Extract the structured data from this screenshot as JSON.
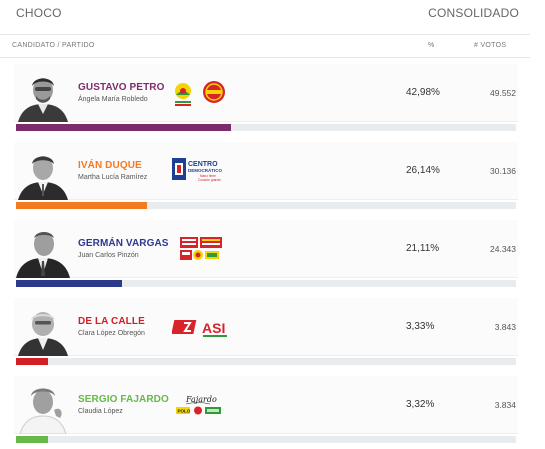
{
  "header": {
    "region": "CHOCO",
    "status": "CONSOLIDADO"
  },
  "columns": {
    "candidate": "CANDIDATO / PARTIDO",
    "percent": "%",
    "votes": "# VOTOS"
  },
  "candidates": [
    {
      "name": "GUSTAVO PETRO",
      "vice": "Ángela María Robledo",
      "percent": "42,98%",
      "votes": "49.552",
      "share": 0.4298,
      "color": "#7b2d6b",
      "logos": [
        "colombia-humana-logo",
        "mais-logo"
      ]
    },
    {
      "name": "IVÁN DUQUE",
      "vice": "Martha Lucía Ramírez",
      "percent": "26,14%",
      "votes": "30.136",
      "share": 0.2614,
      "color": "#f47a20",
      "logos": [
        "centro-democratico-logo"
      ],
      "logo_text": [
        "CENTRO",
        "DEMOCRÁTICO",
        "Mano firme",
        "Corazón grande"
      ]
    },
    {
      "name": "GERMÁN VARGAS",
      "vice": "Juan Carlos Pinzón",
      "percent": "21,11%",
      "votes": "24.343",
      "share": 0.2111,
      "color": "#2d3a8c",
      "logos": [
        "mejor-vargas-lleras-logo",
        "cambio-radical-logo"
      ]
    },
    {
      "name": "DE LA CALLE",
      "vice": "Clara López Obregón",
      "percent": "3,33%",
      "votes": "3.843",
      "share": 0.0333,
      "color": "#d11f25",
      "logos": [
        "partido-liberal-logo",
        "asi-logo"
      ],
      "logo_text": [
        "ASI"
      ]
    },
    {
      "name": "SERGIO FAJARDO",
      "vice": "Claudia López",
      "percent": "3,32%",
      "votes": "3.834",
      "share": 0.0332,
      "color": "#67b847",
      "logos": [
        "fajardo-signature-logo",
        "polo-logo",
        "compromiso-logo",
        "verde-logo"
      ],
      "logo_text": [
        "Fajardo",
        "POLO"
      ]
    }
  ]
}
